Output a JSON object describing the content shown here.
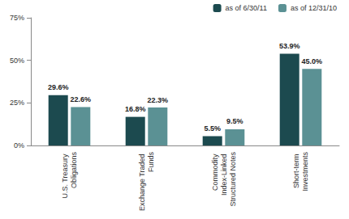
{
  "chart_data": {
    "type": "bar",
    "categories": [
      "U.S. Treasury Obligations",
      "Exchange Traded Funds",
      "Commodity Index-Linked Structured Notes",
      "Short-term Investments"
    ],
    "series": [
      {
        "name": "as of 6/30/11",
        "color": "#1c4a4f",
        "values": [
          29.6,
          16.8,
          5.5,
          53.9
        ],
        "value_labels": [
          "29.6%",
          "16.8%",
          "5.5%",
          "53.9%"
        ]
      },
      {
        "name": "as of 12/31/10",
        "color": "#5b9194",
        "values": [
          22.6,
          22.3,
          9.5,
          45.0
        ],
        "value_labels": [
          "22.6%",
          "22.3%",
          "9.5%",
          "45.0%"
        ]
      }
    ],
    "ylim": [
      0,
      75
    ],
    "yticks": [
      {
        "value": 0,
        "label": "0%"
      },
      {
        "value": 25,
        "label": "25%"
      },
      {
        "value": 50,
        "label": "50%"
      },
      {
        "value": 75,
        "label": "75%"
      }
    ],
    "grid": false,
    "legend": "top-right",
    "data_labels": true
  }
}
